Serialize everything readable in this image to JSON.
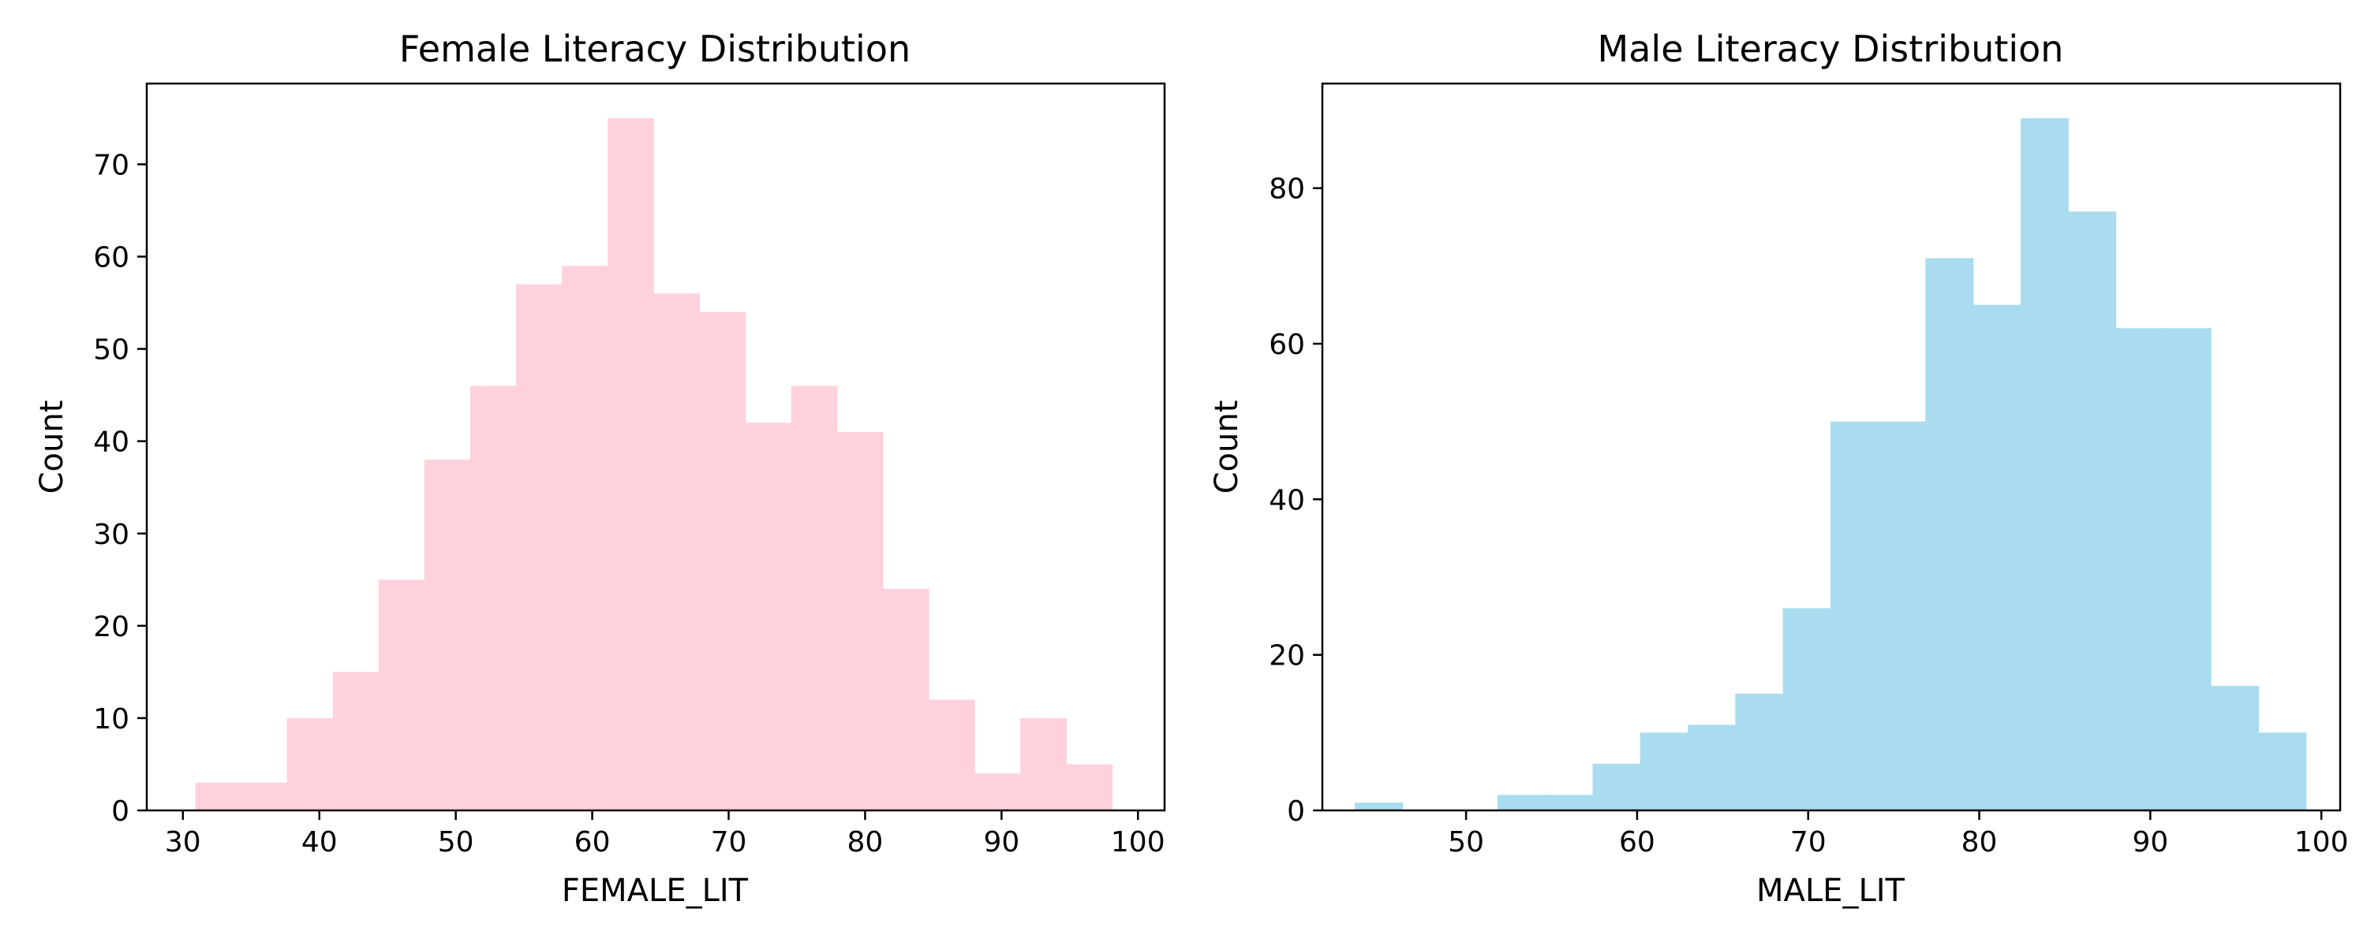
{
  "chart_data": [
    {
      "type": "bar",
      "title": "Female Literacy Distribution",
      "xlabel": "FEMALE_LIT",
      "ylabel": "Count",
      "xlim": [
        27.35,
        101.95
      ],
      "ylim": [
        0,
        78.75
      ],
      "xticks": [
        30,
        40,
        50,
        60,
        70,
        80,
        90,
        100
      ],
      "yticks": [
        0,
        10,
        20,
        30,
        40,
        50,
        60,
        70
      ],
      "bin_start": 30.9,
      "bin_width": 3.36,
      "values": [
        3,
        3,
        10,
        15,
        25,
        38,
        46,
        57,
        59,
        75,
        56,
        54,
        42,
        46,
        41,
        24,
        12,
        4,
        10,
        5
      ],
      "color": "#ffd1dc",
      "grid": false,
      "legend": "none"
    },
    {
      "type": "bar",
      "title": "Male Literacy Distribution",
      "xlabel": "MALE_LIT",
      "ylabel": "Count",
      "xlim": [
        41.6,
        101.1
      ],
      "ylim": [
        0,
        93.45
      ],
      "xticks": [
        50,
        60,
        70,
        80,
        90,
        100
      ],
      "yticks": [
        0,
        20,
        40,
        60,
        80
      ],
      "bin_start": 43.5,
      "bin_width": 2.78,
      "values": [
        1,
        0,
        0,
        2,
        2,
        6,
        10,
        11,
        15,
        26,
        50,
        50,
        71,
        65,
        89,
        77,
        62,
        62,
        16,
        10
      ],
      "color": "#a8dcee",
      "grid": false,
      "legend": "none"
    }
  ]
}
